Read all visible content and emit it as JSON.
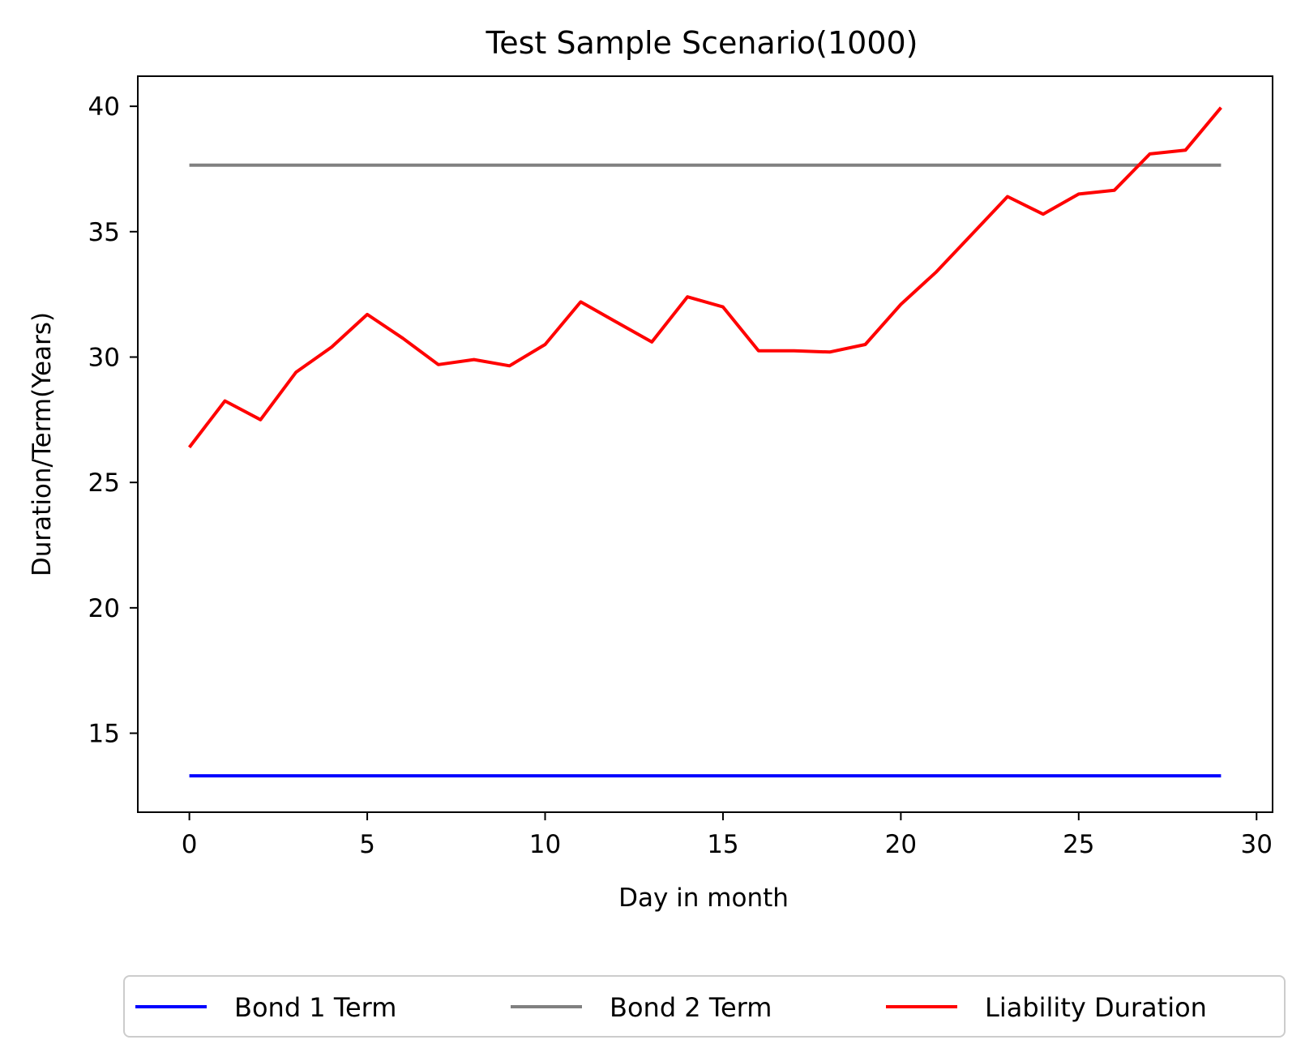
{
  "chart_data": {
    "type": "line",
    "title": "Test Sample Scenario(1000)",
    "xlabel": "Day in month",
    "ylabel": "Duration/Term(Years)",
    "xlim": [
      -1.45,
      30.45
    ],
    "ylim": [
      11.85,
      41.2
    ],
    "xticks": [
      0,
      5,
      10,
      15,
      20,
      25,
      30
    ],
    "yticks": [
      15,
      20,
      25,
      30,
      35,
      40
    ],
    "grid": false,
    "legend_position": "bottom-center",
    "x": [
      0,
      1,
      2,
      3,
      4,
      5,
      6,
      7,
      8,
      9,
      10,
      11,
      12,
      13,
      14,
      15,
      16,
      17,
      18,
      19,
      20,
      21,
      22,
      23,
      24,
      25,
      26,
      27,
      28,
      29
    ],
    "series": [
      {
        "name": "Bond 1 Term",
        "color": "#0000ff",
        "values": [
          13.3,
          13.3,
          13.3,
          13.3,
          13.3,
          13.3,
          13.3,
          13.3,
          13.3,
          13.3,
          13.3,
          13.3,
          13.3,
          13.3,
          13.3,
          13.3,
          13.3,
          13.3,
          13.3,
          13.3,
          13.3,
          13.3,
          13.3,
          13.3,
          13.3,
          13.3,
          13.3,
          13.3,
          13.3,
          13.3
        ]
      },
      {
        "name": "Bond 2 Term",
        "color": "#808080",
        "values": [
          37.65,
          37.65,
          37.65,
          37.65,
          37.65,
          37.65,
          37.65,
          37.65,
          37.65,
          37.65,
          37.65,
          37.65,
          37.65,
          37.65,
          37.65,
          37.65,
          37.65,
          37.65,
          37.65,
          37.65,
          37.65,
          37.65,
          37.65,
          37.65,
          37.65,
          37.65,
          37.65,
          37.65,
          37.65,
          37.65
        ]
      },
      {
        "name": "Liability Duration",
        "color": "#ff0000",
        "values": [
          26.4,
          28.25,
          27.5,
          29.4,
          30.4,
          31.7,
          30.75,
          29.7,
          29.9,
          29.65,
          30.5,
          32.2,
          31.4,
          30.6,
          32.4,
          32.0,
          30.25,
          30.25,
          30.2,
          30.5,
          32.1,
          33.4,
          34.9,
          36.4,
          35.7,
          36.5,
          36.65,
          38.1,
          38.25,
          39.95
        ]
      }
    ]
  }
}
